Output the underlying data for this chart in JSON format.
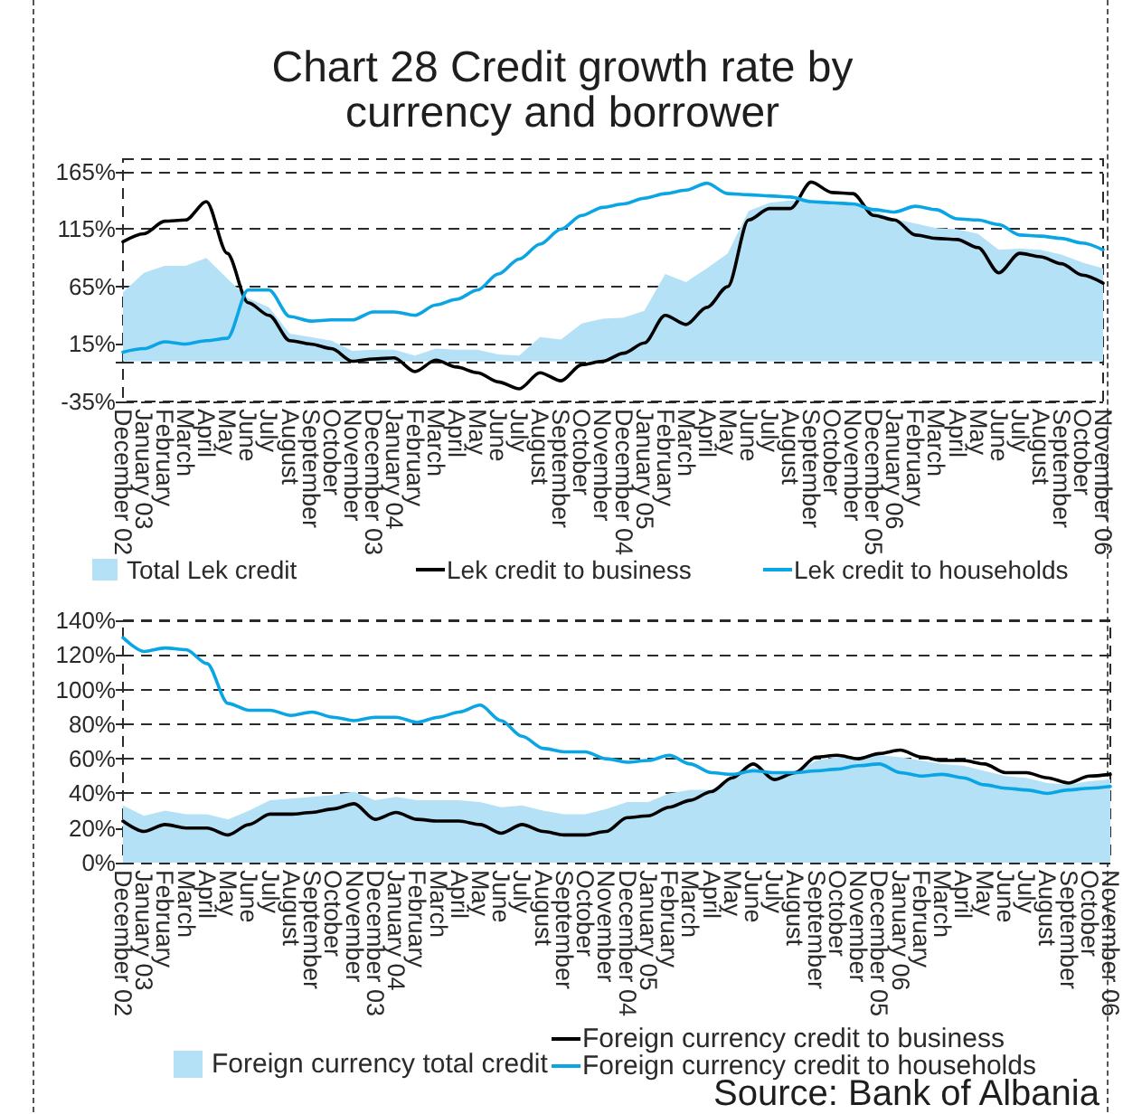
{
  "chart_data": [
    {
      "type": "line",
      "title": "Chart 28 Credit growth rate by currency and borrower",
      "categories": [
        "December 02",
        "January 03",
        "February",
        "March",
        "April",
        "May",
        "June",
        "July",
        "August",
        "September",
        "October",
        "November",
        "December 03",
        "January 04",
        "February",
        "March",
        "April",
        "May",
        "June",
        "July",
        "August",
        "September",
        "October",
        "November",
        "December 04",
        "January 05",
        "February",
        "March",
        "April",
        "May",
        "June",
        "July",
        "August",
        "September",
        "October",
        "November",
        "December 05",
        "January 06",
        "February",
        "March",
        "April",
        "May",
        "June",
        "July",
        "August",
        "September",
        "October",
        "November 06"
      ],
      "series": [
        {
          "name": "Total Lek credit",
          "type": "area",
          "color": "#b5e1f7",
          "values": [
            60,
            77,
            83,
            83,
            90,
            72,
            55,
            47,
            24,
            21,
            18,
            9,
            10,
            10,
            5,
            11,
            10,
            10,
            6,
            5,
            21,
            19,
            33,
            37,
            38,
            44,
            76,
            69,
            81,
            94,
            131,
            138,
            140,
            140,
            138,
            136,
            131,
            124,
            120,
            116,
            115,
            111,
            97,
            98,
            97,
            93,
            86,
            81
          ]
        },
        {
          "name": "Lek credit to business",
          "color": "#000000",
          "values": [
            104,
            111,
            122,
            123,
            139,
            94,
            51,
            40,
            18,
            15,
            11,
            0,
            2,
            3,
            -9,
            1,
            -5,
            -10,
            -18,
            -24,
            -10,
            -17,
            -3,
            0,
            7,
            16,
            40,
            32,
            47,
            65,
            123,
            133,
            133,
            156,
            147,
            146,
            127,
            123,
            110,
            107,
            106,
            99,
            77,
            94,
            91,
            85,
            75,
            68
          ]
        },
        {
          "name": "Lek credit to households",
          "color": "#0aa5e4",
          "values": [
            8,
            11,
            17,
            15,
            18,
            20,
            62,
            62,
            39,
            35,
            36,
            36,
            43,
            43,
            40,
            49,
            54,
            62,
            76,
            89,
            102,
            115,
            127,
            134,
            137,
            142,
            146,
            149,
            155,
            146,
            145,
            144,
            143,
            139,
            138,
            137,
            132,
            130,
            135,
            132,
            124,
            123,
            119,
            110,
            109,
            107,
            103,
            97
          ]
        }
      ],
      "ylim": [
        -35,
        176
      ],
      "yticks": [
        {
          "value": -35,
          "label": "-35%"
        },
        {
          "value": 0,
          "label": null
        },
        {
          "value": 15,
          "label": "15%"
        },
        {
          "value": 65,
          "label": "65%"
        },
        {
          "value": 115,
          "label": "115%"
        },
        {
          "value": 165,
          "label": "165%"
        }
      ],
      "grid": "y",
      "legend": "bottom",
      "marker": "none"
    },
    {
      "type": "line",
      "categories": [
        "December 02",
        "January 03",
        "February",
        "March",
        "April",
        "May",
        "June",
        "July",
        "August",
        "September",
        "October",
        "November",
        "December 03",
        "January 04",
        "February",
        "March",
        "April",
        "May",
        "June",
        "July",
        "August",
        "September",
        "October",
        "November",
        "December 04",
        "January 05",
        "February",
        "March",
        "April",
        "May",
        "June",
        "July",
        "August",
        "September",
        "October",
        "November",
        "December 05",
        "January 06",
        "February",
        "March",
        "April",
        "May",
        "June",
        "July",
        "August",
        "September",
        "October",
        "November 06"
      ],
      "series": [
        {
          "name": "Foreign currency total credit",
          "type": "area",
          "color": "#b5e1f7",
          "values": [
            33,
            27,
            30,
            28,
            28,
            25,
            30,
            36,
            37,
            38,
            39,
            41,
            36,
            38,
            36,
            36,
            36,
            35,
            32,
            33,
            30,
            28,
            28,
            31,
            35,
            35,
            40,
            42,
            42,
            49,
            55,
            51,
            52,
            59,
            61,
            61,
            62,
            61,
            59,
            57,
            56,
            53,
            50,
            49,
            46,
            45,
            47,
            48
          ]
        },
        {
          "name": "Foreign currency credit to business",
          "color": "#000000",
          "values": [
            24,
            18,
            22,
            20,
            20,
            16,
            22,
            28,
            28,
            29,
            31,
            34,
            25,
            29,
            25,
            24,
            24,
            22,
            17,
            22,
            18,
            16,
            16,
            18,
            26,
            27,
            32,
            36,
            41,
            49,
            57,
            48,
            52,
            61,
            62,
            60,
            63,
            65,
            61,
            59,
            59,
            57,
            52,
            52,
            49,
            46,
            50,
            51
          ]
        },
        {
          "name": "Foreign currency credit to households",
          "color": "#0aa5e4",
          "values": [
            130,
            122,
            124,
            123,
            115,
            92,
            88,
            88,
            85,
            87,
            84,
            82,
            84,
            84,
            81,
            84,
            87,
            91,
            82,
            73,
            66,
            64,
            64,
            60,
            58,
            59,
            62,
            57,
            52,
            51,
            53,
            52,
            52,
            53,
            54,
            56,
            57,
            52,
            50,
            51,
            49,
            45,
            43,
            42,
            40,
            42,
            43,
            44
          ]
        }
      ],
      "ylim": [
        0,
        140
      ],
      "yticks": [
        {
          "value": 0,
          "label": "0%"
        },
        {
          "value": 20,
          "label": "20%"
        },
        {
          "value": 40,
          "label": "40%"
        },
        {
          "value": 60,
          "label": "60%"
        },
        {
          "value": 80,
          "label": "80%"
        },
        {
          "value": 100,
          "label": "100%"
        },
        {
          "value": 120,
          "label": "120%"
        },
        {
          "value": 140,
          "label": "140%"
        }
      ],
      "grid": "y",
      "legend": "bottom",
      "marker": "none",
      "annotations": [
        "Source: Bank of Albania"
      ]
    }
  ]
}
